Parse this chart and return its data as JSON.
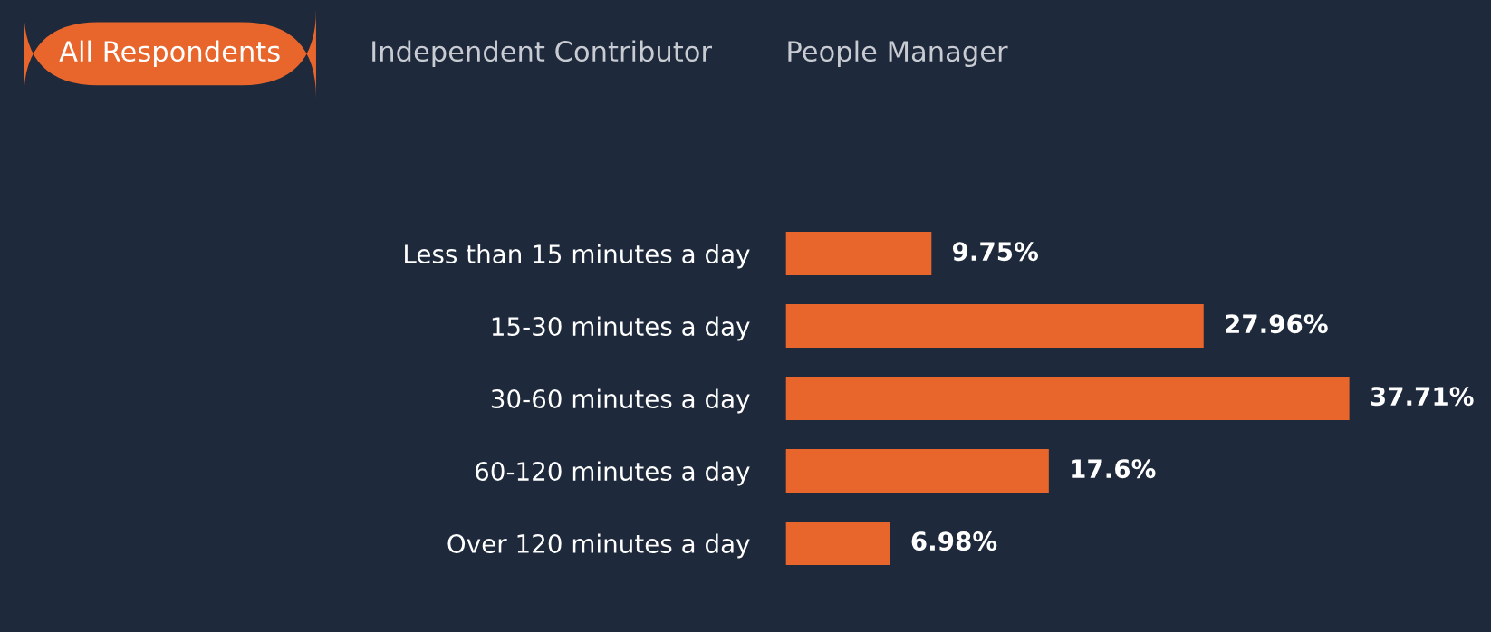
{
  "chart_data": {
    "type": "bar",
    "orientation": "horizontal",
    "categories": [
      "Less than 15 minutes a day",
      "15-30 minutes a day",
      "30-60 minutes a day",
      "60-120 minutes a day",
      "Over 120 minutes a day"
    ],
    "values": [
      9.75,
      27.96,
      37.71,
      17.6,
      6.98
    ],
    "value_labels": [
      "9.75%",
      "27.96%",
      "37.71%",
      "17.6%",
      "6.98%"
    ],
    "color": "#e8662c",
    "annotations": [
      "All Respondents",
      "Independent Contributor",
      "People Manager"
    ],
    "grid": false,
    "legend": false
  }
}
